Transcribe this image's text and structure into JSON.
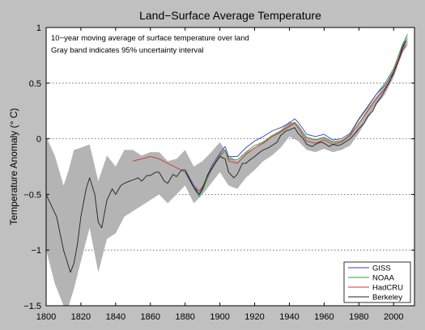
{
  "chart_data": {
    "type": "line",
    "title": "Land−Surface Average Temperature",
    "xlabel": "",
    "ylabel": "Temperature Anomaly (° C)",
    "xlim": [
      1800,
      2012
    ],
    "ylim": [
      -1.5,
      1.0
    ],
    "xticks": [
      "1800",
      "1820",
      "1840",
      "1860",
      "1880",
      "1900",
      "1920",
      "1940",
      "1960",
      "1980",
      "2000"
    ],
    "yticks": [
      "−1.5",
      "−1",
      "−0.5",
      "0",
      "0.5",
      "1"
    ],
    "grid": "horizontal dotted",
    "legend_position": "bottom-right",
    "annotations": [
      "10−year moving average of surface temperature over land",
      "Gray band indicates 95% uncertainty interval"
    ],
    "uncertainty_band": {
      "x": [
        1800,
        1805,
        1810,
        1813,
        1816,
        1820,
        1825,
        1830,
        1835,
        1840,
        1845,
        1850,
        1855,
        1860,
        1865,
        1870,
        1875,
        1880,
        1885,
        1890,
        1895,
        1900,
        1905,
        1910,
        1915,
        1920,
        1925,
        1930,
        1935,
        1940,
        1945,
        1950,
        1955,
        1960,
        1965,
        1970,
        1975,
        1980,
        1985,
        1990,
        1995,
        2000,
        2005,
        2008
      ],
      "upper": [
        0.02,
        -0.15,
        -0.42,
        -0.28,
        -0.1,
        -0.08,
        -0.05,
        -0.38,
        -0.15,
        -0.25,
        -0.1,
        -0.1,
        -0.15,
        -0.12,
        -0.12,
        -0.2,
        -0.18,
        -0.1,
        -0.25,
        -0.2,
        -0.12,
        -0.03,
        -0.15,
        -0.2,
        -0.12,
        -0.08,
        -0.02,
        0.02,
        0.08,
        0.16,
        0.12,
        0.02,
        0.0,
        0.02,
        -0.02,
        -0.01,
        0.03,
        0.14,
        0.27,
        0.38,
        0.48,
        0.63,
        0.86,
        0.92
      ],
      "lower": [
        -1.0,
        -1.3,
        -1.5,
        -1.5,
        -1.35,
        -1.1,
        -0.8,
        -1.2,
        -0.9,
        -0.85,
        -0.7,
        -0.65,
        -0.6,
        -0.55,
        -0.5,
        -0.58,
        -0.5,
        -0.42,
        -0.58,
        -0.5,
        -0.4,
        -0.3,
        -0.42,
        -0.45,
        -0.35,
        -0.28,
        -0.2,
        -0.15,
        -0.08,
        0.02,
        -0.02,
        -0.1,
        -0.12,
        -0.09,
        -0.12,
        -0.1,
        -0.06,
        0.05,
        0.18,
        0.3,
        0.4,
        0.55,
        0.78,
        0.84
      ]
    },
    "series": [
      {
        "name": "GISS",
        "color": "#3a3fbf",
        "x": [
          1880,
          1885,
          1888,
          1890,
          1895,
          1900,
          1903,
          1905,
          1910,
          1915,
          1920,
          1925,
          1930,
          1935,
          1940,
          1943,
          1945,
          1950,
          1955,
          1960,
          1965,
          1970,
          1975,
          1980,
          1985,
          1990,
          1995,
          2000,
          2005,
          2007
        ],
        "values": [
          -0.28,
          -0.42,
          -0.5,
          -0.44,
          -0.25,
          -0.13,
          -0.07,
          -0.16,
          -0.16,
          -0.08,
          -0.02,
          0.02,
          0.07,
          0.1,
          0.14,
          0.18,
          0.15,
          0.04,
          0.02,
          0.04,
          -0.01,
          0.0,
          0.05,
          0.18,
          0.29,
          0.4,
          0.48,
          0.6,
          0.8,
          0.88
        ]
      },
      {
        "name": "NOAA",
        "color": "#3a9a3a",
        "x": [
          1880,
          1885,
          1888,
          1890,
          1895,
          1900,
          1903,
          1905,
          1910,
          1915,
          1920,
          1925,
          1930,
          1935,
          1940,
          1943,
          1945,
          1950,
          1955,
          1960,
          1965,
          1970,
          1975,
          1980,
          1985,
          1990,
          1995,
          2000,
          2005,
          2008
        ],
        "values": [
          -0.3,
          -0.44,
          -0.52,
          -0.46,
          -0.28,
          -0.16,
          -0.1,
          -0.18,
          -0.19,
          -0.12,
          -0.06,
          -0.03,
          0.03,
          0.07,
          0.12,
          0.15,
          0.12,
          0.01,
          -0.01,
          0.01,
          -0.03,
          -0.02,
          0.04,
          0.17,
          0.28,
          0.4,
          0.5,
          0.63,
          0.84,
          0.94
        ]
      },
      {
        "name": "HadCRU",
        "color": "#d03030",
        "x": [
          1850,
          1855,
          1860,
          1865,
          1870,
          1875,
          1880,
          1885,
          1888,
          1890,
          1895,
          1900,
          1903,
          1905,
          1910,
          1915,
          1920,
          1925,
          1930,
          1935,
          1940,
          1943,
          1945,
          1950,
          1955,
          1960,
          1965,
          1970,
          1975,
          1980,
          1985,
          1990,
          1995,
          2000,
          2005,
          2007
        ],
        "values": [
          -0.2,
          -0.18,
          -0.16,
          -0.18,
          -0.22,
          -0.26,
          -0.3,
          -0.42,
          -0.47,
          -0.43,
          -0.27,
          -0.15,
          -0.1,
          -0.2,
          -0.22,
          -0.14,
          -0.08,
          -0.04,
          0.02,
          0.06,
          0.11,
          0.14,
          0.1,
          -0.02,
          -0.04,
          -0.01,
          -0.05,
          -0.03,
          0.03,
          0.14,
          0.25,
          0.36,
          0.45,
          0.58,
          0.78,
          0.84
        ]
      },
      {
        "name": "Berkeley",
        "color": "#202020",
        "x": [
          1800,
          1803,
          1806,
          1808,
          1810,
          1812,
          1814,
          1816,
          1818,
          1820,
          1823,
          1825,
          1828,
          1830,
          1832,
          1835,
          1838,
          1840,
          1843,
          1845,
          1848,
          1850,
          1853,
          1855,
          1858,
          1860,
          1863,
          1865,
          1868,
          1870,
          1873,
          1875,
          1878,
          1880,
          1883,
          1885,
          1888,
          1890,
          1893,
          1895,
          1898,
          1900,
          1903,
          1905,
          1908,
          1910,
          1913,
          1915,
          1918,
          1920,
          1923,
          1925,
          1928,
          1930,
          1933,
          1935,
          1938,
          1940,
          1943,
          1945,
          1948,
          1950,
          1953,
          1955,
          1958,
          1960,
          1963,
          1965,
          1968,
          1970,
          1973,
          1975,
          1978,
          1980,
          1983,
          1985,
          1988,
          1990,
          1993,
          1995,
          1998,
          2000,
          2003,
          2005,
          2007
        ],
        "values": [
          -0.5,
          -0.6,
          -0.7,
          -0.85,
          -1.0,
          -1.1,
          -1.2,
          -1.12,
          -0.95,
          -0.7,
          -0.45,
          -0.35,
          -0.5,
          -0.75,
          -0.8,
          -0.55,
          -0.45,
          -0.5,
          -0.42,
          -0.4,
          -0.38,
          -0.37,
          -0.35,
          -0.38,
          -0.33,
          -0.33,
          -0.3,
          -0.3,
          -0.38,
          -0.4,
          -0.32,
          -0.34,
          -0.28,
          -0.28,
          -0.38,
          -0.44,
          -0.5,
          -0.45,
          -0.32,
          -0.28,
          -0.2,
          -0.16,
          -0.18,
          -0.3,
          -0.35,
          -0.32,
          -0.22,
          -0.22,
          -0.18,
          -0.16,
          -0.12,
          -0.1,
          -0.08,
          -0.06,
          -0.03,
          0.03,
          0.07,
          0.08,
          0.1,
          0.05,
          0.0,
          -0.05,
          -0.07,
          -0.05,
          -0.03,
          -0.04,
          -0.07,
          -0.05,
          -0.06,
          -0.05,
          -0.02,
          0.0,
          0.05,
          0.09,
          0.14,
          0.2,
          0.25,
          0.32,
          0.38,
          0.44,
          0.52,
          0.6,
          0.72,
          0.82,
          0.88
        ]
      }
    ]
  }
}
